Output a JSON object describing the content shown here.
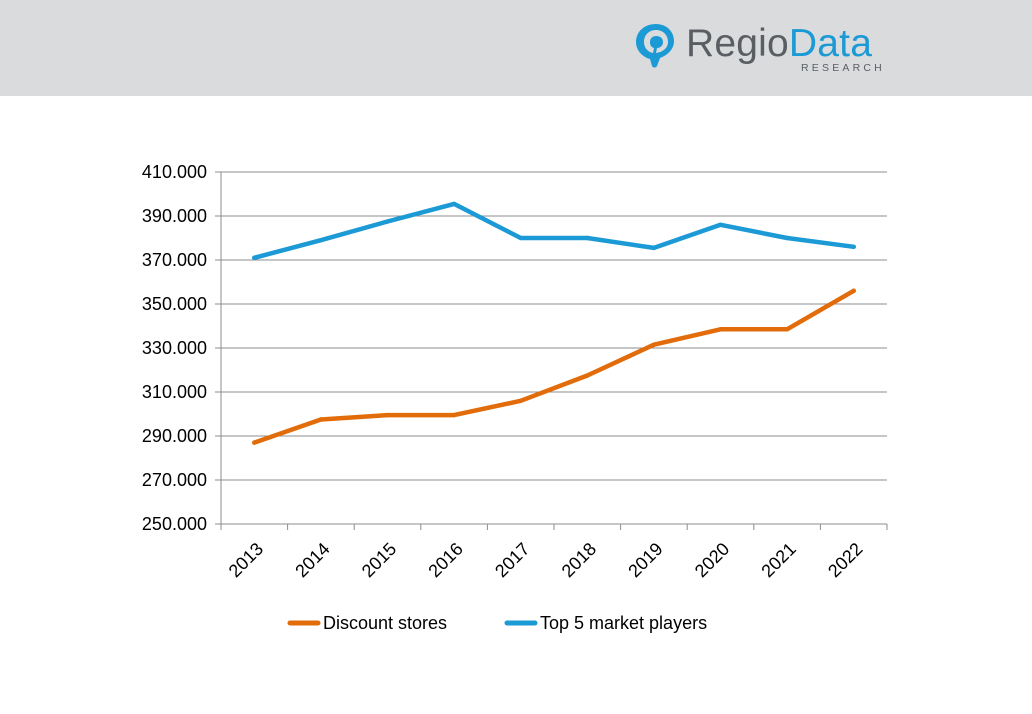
{
  "brand": {
    "name_part1": "Regio",
    "name_part2": "Data",
    "tagline": "RESEARCH",
    "logo_icon": "map-pin-icon",
    "colors": {
      "grey": "#5a5e63",
      "blue": "#1c9ad6",
      "header_bg": "#dadbdc"
    }
  },
  "chart_data": {
    "type": "line",
    "title": "",
    "xlabel": "",
    "ylabel": "",
    "x": [
      "2013",
      "2014",
      "2015",
      "2016",
      "2017",
      "2018",
      "2019",
      "2020",
      "2021",
      "2022"
    ],
    "ylim": [
      250000,
      410000
    ],
    "y_ticks": [
      250000,
      270000,
      290000,
      310000,
      330000,
      350000,
      370000,
      390000,
      410000
    ],
    "y_tick_labels": [
      "250.000",
      "270.000",
      "290.000",
      "310.000",
      "330.000",
      "350.000",
      "370.000",
      "390.000",
      "410.000"
    ],
    "grid": "horizontal",
    "legend_position": "bottom",
    "series": [
      {
        "name": "Discount stores",
        "color": "#e26b0a",
        "values": [
          287000,
          297500,
          299500,
          299500,
          306000,
          317500,
          331500,
          338500,
          338500,
          356000
        ]
      },
      {
        "name": "Top 5 market players",
        "color": "#1c9ad6",
        "values": [
          371000,
          379000,
          387500,
          395500,
          380000,
          380000,
          375500,
          386000,
          380000,
          376000
        ]
      }
    ]
  }
}
